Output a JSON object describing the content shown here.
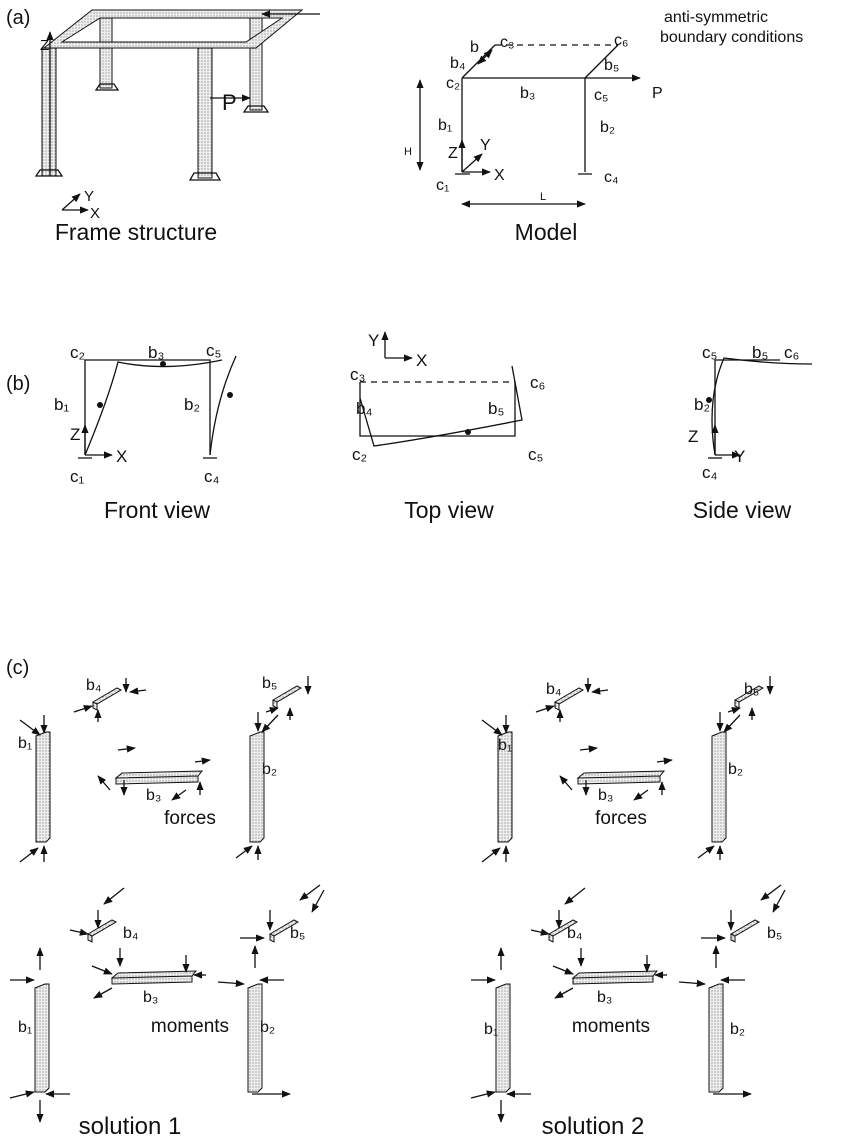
{
  "panel_a": {
    "label": "(a)",
    "frame": {
      "caption": "Frame structure",
      "labels": [
        "Z",
        "Y",
        "X",
        "P"
      ]
    },
    "model": {
      "caption": "Model",
      "note": [
        "anti-symmetric",
        "boundary conditions"
      ],
      "labels": [
        "c₃",
        "c₆",
        "b",
        "b₄",
        "c₂",
        "b₃",
        "c₅",
        "b₅",
        "P",
        "H",
        "b₁",
        "b₂",
        "Z",
        "Y",
        "X",
        "c₁",
        "c₄",
        "L"
      ]
    }
  },
  "panel_b": {
    "label": "(b)",
    "views": [
      {
        "caption": "Front view",
        "labels": [
          "c₂",
          "b₃",
          "c₅",
          "b₁",
          "b₂",
          "Z",
          "X",
          "c₁",
          "c₄"
        ]
      },
      {
        "caption": "Top view",
        "labels": [
          "Y",
          "X",
          "c₃",
          "c₆",
          "b₄",
          "b₅",
          "c₂",
          "c₅"
        ]
      },
      {
        "caption": "Side view",
        "labels": [
          "c₅",
          "b₅",
          "c₆",
          "b₂",
          "Z",
          "c₄",
          "Y"
        ]
      }
    ]
  },
  "panel_c": {
    "label": "(c)",
    "solutions": [
      {
        "caption": "solution 1",
        "forces": {
          "caption": "forces",
          "labels": [
            "b₄",
            "b₅",
            "b₁",
            "b₃",
            "b₂"
          ]
        },
        "moments": {
          "caption": "moments",
          "labels": [
            "b₄",
            "b₅",
            "b₁",
            "b₃",
            "b₂"
          ]
        }
      },
      {
        "caption": "solution 2",
        "forces": {
          "caption": "forces",
          "labels": [
            "b₄",
            "b₅",
            "b₁",
            "b₃",
            "b₂"
          ]
        },
        "moments": {
          "caption": "moments",
          "labels": [
            "b₄",
            "b₅",
            "b₁",
            "b₃",
            "b₂"
          ]
        }
      }
    ]
  }
}
